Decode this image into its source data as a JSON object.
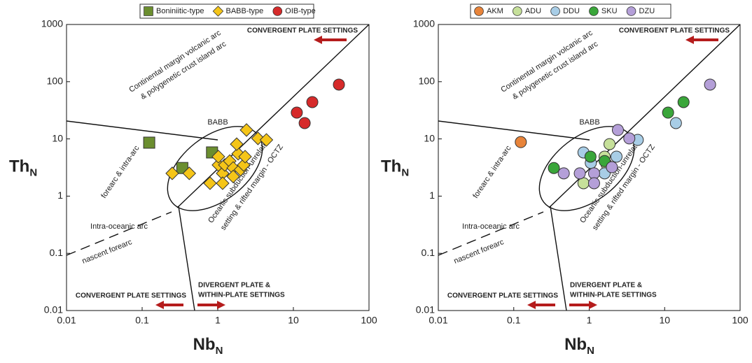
{
  "chart_data": [
    {
      "type": "scatter",
      "xlog": true,
      "ylog": true,
      "xlabel": "Nb",
      "xlabel_sub": "N",
      "ylabel": "Th",
      "ylabel_sub": "N",
      "xlim": [
        0.01,
        100
      ],
      "ylim": [
        0.01,
        1000
      ],
      "xticks": [
        0.01,
        0.1,
        1,
        10,
        100
      ],
      "yticks": [
        0.01,
        0.1,
        1,
        10,
        100,
        1000
      ],
      "annotations": [
        "CONVERGENT PLATE SETTINGS",
        "Continental margin volcanic arc",
        "& polygenetic crust island arc",
        "BABB",
        "forearc & intra-arc",
        "Oceanic subduction-unrelated",
        "setting & rifted margin - OCTZ",
        "Intra-oceanic arc",
        "nascent forearc",
        "CONVERGENT PLATE SETTINGS",
        "DIVERGENT PLATE &",
        "WITHIN-PLATE SETTINGS"
      ],
      "series": [
        {
          "name": "Boniniitic-type",
          "color": "#6b8e2f",
          "marker": "square",
          "x": [
            0.124,
            0.34,
            0.84
          ],
          "values": [
            8.6,
            3.1,
            5.8
          ]
        },
        {
          "name": "BABB-type",
          "color": "#f5c518",
          "marker": "diamond",
          "x": [
            0.25,
            0.42,
            0.79,
            1.02,
            1.02,
            1.16,
            1.16,
            1.24,
            1.44,
            1.6,
            1.6,
            1.86,
            2.0,
            1.78,
            2.2,
            2.3,
            2.4,
            3.4,
            4.4
          ],
          "values": [
            2.5,
            2.5,
            1.68,
            3.5,
            4.9,
            2.5,
            1.68,
            3.5,
            4.1,
            3.1,
            2.2,
            5.5,
            2.9,
            8.1,
            3.5,
            4.9,
            14.3,
            10.2,
            9.6
          ]
        },
        {
          "name": "OIB-type",
          "color": "#d62a2a",
          "marker": "circle",
          "x": [
            11.1,
            17.8,
            14.1,
            40
          ],
          "values": [
            28.8,
            44,
            18.9,
            89
          ]
        }
      ]
    },
    {
      "type": "scatter",
      "xlog": true,
      "ylog": true,
      "xlabel": "Nb",
      "xlabel_sub": "N",
      "ylabel": "Th",
      "ylabel_sub": "N",
      "xlim": [
        0.01,
        100
      ],
      "ylim": [
        0.01,
        1000
      ],
      "xticks": [
        0.01,
        0.1,
        1,
        10,
        100
      ],
      "yticks": [
        0.01,
        0.1,
        1,
        10,
        100,
        1000
      ],
      "annotations": [
        "CONVERGENT PLATE SETTINGS",
        "Continental margin volcanic arc",
        "& polygenetic crust island arc",
        "BABB",
        "forearc & intra-arc",
        "Oceanic subduction-unrelated",
        "setting & rifted margin - OCTZ",
        "Intra-oceanic arc",
        "nascent forearc",
        "CONVERGENT PLATE SETTINGS",
        "DIVERGENT PLATE &",
        "WITHIN-PLATE SETTINGS"
      ],
      "series": [
        {
          "name": "AKM",
          "color": "#e8843a",
          "marker": "circle",
          "x": [
            0.124
          ],
          "values": [
            8.8
          ]
        },
        {
          "name": "ADU",
          "color": "#c6e09a",
          "marker": "circle",
          "x": [
            1.86,
            0.84,
            1.6,
            1.7
          ],
          "values": [
            8.1,
            1.68,
            4.9,
            3.6
          ]
        },
        {
          "name": "DDU",
          "color": "#a8cde6",
          "marker": "circle",
          "x": [
            0.84,
            1.05,
            1.6,
            2.3,
            4.4,
            14.1
          ],
          "values": [
            5.8,
            3.8,
            2.5,
            4.9,
            9.6,
            18.9
          ]
        },
        {
          "name": "SKU",
          "color": "#3aa63a",
          "marker": "circle",
          "x": [
            0.34,
            1.04,
            1.6,
            11.1,
            17.8
          ],
          "values": [
            3.1,
            4.9,
            4.1,
            28.8,
            44
          ]
        },
        {
          "name": "DZU",
          "color": "#b49fd8",
          "marker": "circle",
          "x": [
            0.46,
            0.75,
            1.16,
            1.16,
            2.0,
            2.4,
            3.4,
            40
          ],
          "values": [
            2.5,
            2.5,
            2.5,
            1.68,
            3.2,
            14.3,
            10.2,
            89
          ]
        }
      ]
    }
  ]
}
